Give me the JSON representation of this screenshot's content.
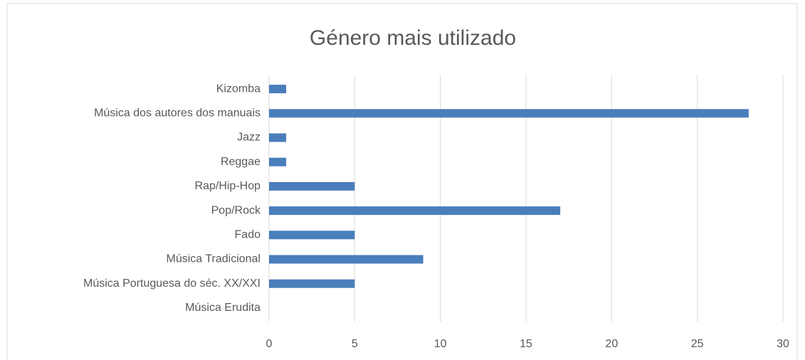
{
  "chart_data": {
    "type": "bar",
    "orientation": "horizontal",
    "title": "Género mais utilizado",
    "categories": [
      "Kizomba",
      "Música dos autores dos manuais",
      "Jazz",
      "Reggae",
      "Rap/Hip-Hop",
      "Pop/Rock",
      "Fado",
      "Música Tradicional",
      "Música Portuguesa do séc. XX/XXI",
      "Música Erudita"
    ],
    "values": [
      1,
      28,
      1,
      1,
      5,
      17,
      5,
      9,
      5,
      0
    ],
    "color": "#4a7ebb",
    "xlim": [
      0,
      30
    ],
    "xticks": [
      0,
      5,
      10,
      15,
      20,
      25,
      30
    ],
    "grid": true
  }
}
